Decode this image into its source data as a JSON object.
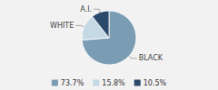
{
  "chart_data": {
    "type": "pie",
    "categories": [
      "BLACK",
      "WHITE",
      "A.I."
    ],
    "values": [
      73.7,
      15.8,
      10.5
    ],
    "value_labels": [
      "73.7%",
      "15.8%",
      "10.5%"
    ],
    "colors": [
      "#7b9db4",
      "#c5d9e4",
      "#2b4a6b"
    ],
    "legend": "bottom"
  }
}
